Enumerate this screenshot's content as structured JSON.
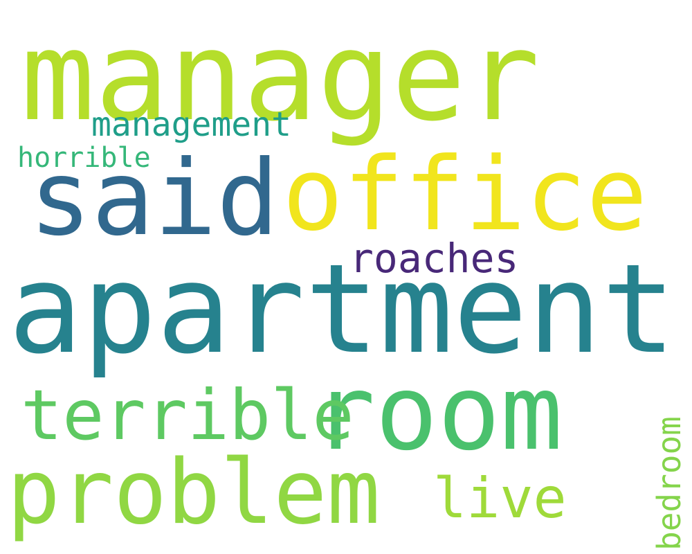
{
  "words": [
    {
      "text": "manager",
      "color": "#b5de2b"
    },
    {
      "text": "apartment",
      "color": "#26828e"
    },
    {
      "text": "office",
      "color": "#f1e51d"
    },
    {
      "text": "said",
      "color": "#31688e"
    },
    {
      "text": "room",
      "color": "#4ac16d"
    },
    {
      "text": "problem",
      "color": "#90d743"
    },
    {
      "text": "terrible",
      "color": "#5ec962"
    },
    {
      "text": "roaches",
      "color": "#482878"
    },
    {
      "text": "management",
      "color": "#1f9e89"
    },
    {
      "text": "live",
      "color": "#9fda3a"
    },
    {
      "text": "horrible",
      "color": "#35b779"
    },
    {
      "text": "bedroom",
      "color": "#84d44b"
    }
  ]
}
